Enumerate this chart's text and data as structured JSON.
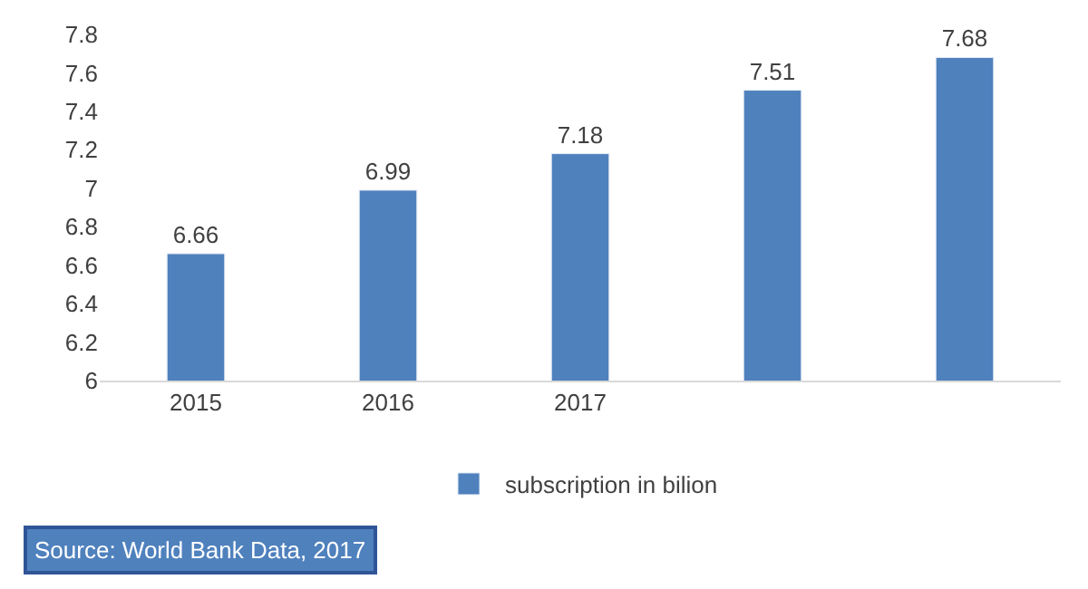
{
  "chart_data": {
    "type": "bar",
    "categories": [
      "2015",
      "2016",
      "2017",
      null,
      null
    ],
    "series": [
      {
        "name": "subscription in bilion",
        "color": "#4f81bd",
        "values": [
          6.66,
          6.99,
          7.18,
          7.51,
          7.68
        ]
      }
    ],
    "ylim": [
      6,
      7.8
    ],
    "yticks": [
      6,
      6.2,
      6.4,
      6.6,
      6.8,
      7,
      7.2,
      7.4,
      7.6,
      7.8
    ],
    "legend": "bottom",
    "data_labels": true,
    "annotations": [
      "Source: World Bank Data, 2017"
    ]
  }
}
